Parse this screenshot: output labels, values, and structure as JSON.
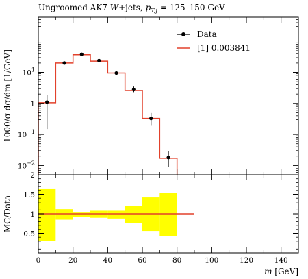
{
  "chart_data": {
    "type": "line",
    "title": "Ungroomed AK7 W+jets, p_T,j = 125–150 GeV",
    "title_parts": {
      "prefix": "Ungroomed AK7 ",
      "W": "W",
      "mid": "+jets, ",
      "p": "p",
      "sub": "T,j",
      "suffix": " = 125–150 GeV"
    },
    "xlabel": "m [GeV]",
    "xlabel_parts": {
      "m": "m",
      "unit": " [GeV]"
    },
    "main": {
      "ylabel": "1000/σ dσ/dm [1/GeV]",
      "yscale": "log",
      "ylim": [
        0.005,
        600
      ],
      "yticks": [
        0.01,
        0.1,
        1,
        10
      ],
      "ytick_labels": [
        {
          "base": "10",
          "exp": "−2"
        },
        {
          "base": "10",
          "exp": "−1"
        },
        {
          "base": "1",
          "exp": ""
        },
        {
          "base": "10",
          "exp": "1"
        }
      ],
      "data": {
        "name": "Data",
        "color": "#000000",
        "x": [
          5,
          15,
          25,
          35,
          45,
          55,
          65,
          75
        ],
        "y": [
          1.1,
          20,
          38,
          24,
          9.5,
          2.8,
          0.33,
          0.018
        ],
        "yerr_low": [
          0.95,
          1.5,
          2.0,
          1.5,
          0.8,
          0.5,
          0.14,
          0.009
        ],
        "yerr_high": [
          0.8,
          2.0,
          2.5,
          1.8,
          0.9,
          0.7,
          0.16,
          0.011
        ]
      },
      "mc": {
        "name": "[1] 0.003841",
        "color": "#e2412b",
        "edges": [
          0,
          10,
          20,
          30,
          40,
          50,
          60,
          70,
          80
        ],
        "values": [
          1.05,
          20,
          37,
          23,
          9.5,
          2.6,
          0.33,
          0.017
        ]
      }
    },
    "ratio": {
      "ylabel": "MC/Data",
      "ylim": [
        0,
        2
      ],
      "yticks": [
        0.5,
        1,
        1.5
      ],
      "ytick_labels": [
        "0.5",
        "1",
        "1.5"
      ],
      "top_label": "2",
      "band_color": "#ffff00",
      "band_edges": [
        0,
        10,
        20,
        30,
        40,
        50,
        60,
        70,
        80
      ],
      "band_low": [
        0.3,
        0.85,
        0.93,
        0.9,
        0.88,
        0.77,
        0.56,
        0.43
      ],
      "band_high": [
        1.65,
        1.12,
        1.05,
        1.08,
        1.08,
        1.2,
        1.42,
        1.53
      ],
      "mc_line": {
        "x": [
          0,
          90
        ],
        "y": [
          1,
          1
        ]
      }
    },
    "xlim": [
      0,
      150
    ],
    "xticks": [
      0,
      20,
      40,
      60,
      80,
      100,
      120,
      140
    ],
    "xtick_labels": [
      "0",
      "20",
      "40",
      "60",
      "80",
      "100",
      "120",
      "140"
    ],
    "legend": {
      "position": "top-right",
      "entries": [
        "Data",
        "[1] 0.003841"
      ]
    }
  }
}
